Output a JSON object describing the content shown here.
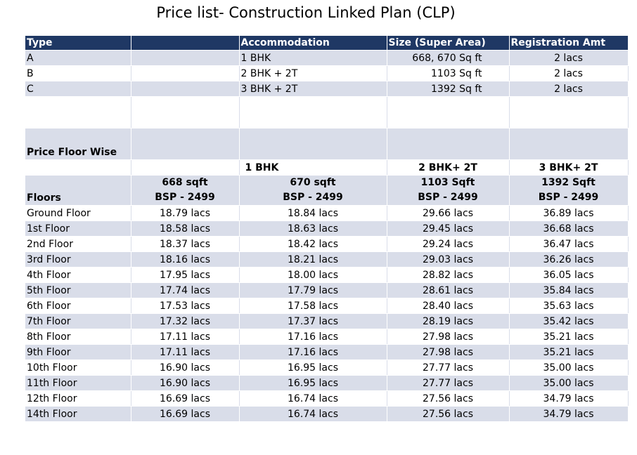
{
  "title": "Price list- Construction Linked Plan (CLP)",
  "header": {
    "type": "Type",
    "accommodation": "Accommodation",
    "size": "Size (Super Area)",
    "registration": "Registration Amt"
  },
  "types": [
    {
      "type": "A",
      "accommodation": "1 BHK",
      "size": "668, 670 Sq ft",
      "registration": "2 lacs"
    },
    {
      "type": "B",
      "accommodation": "2 BHK + 2T",
      "size": "1103 Sq ft",
      "registration": "2 lacs"
    },
    {
      "type": "C",
      "accommodation": "3 BHK + 2T",
      "size": "1392 Sq ft",
      "registration": "2 lacs"
    }
  ],
  "price_section": {
    "heading": "Price Floor Wise",
    "groups": [
      "1 BHK",
      "2 BHK+ 2T",
      "3 BHK+ 2T"
    ],
    "floors_label": "Floors",
    "columns": [
      {
        "size": "668 sqft",
        "bsp": "BSP - 2499"
      },
      {
        "size": "670 sqft",
        "bsp": "BSP - 2499"
      },
      {
        "size": "1103 Sqft",
        "bsp": "BSP - 2499"
      },
      {
        "size": "1392 Sqft",
        "bsp": "BSP - 2499"
      }
    ],
    "rows": [
      {
        "floor": "Ground Floor",
        "p1": "18.79 lacs",
        "p2": "18.84 lacs",
        "p3": "29.66 lacs",
        "p4": "36.89 lacs"
      },
      {
        "floor": "1st Floor",
        "p1": "18.58 lacs",
        "p2": "18.63 lacs",
        "p3": "29.45 lacs",
        "p4": "36.68 lacs"
      },
      {
        "floor": "2nd Floor",
        "p1": "18.37 lacs",
        "p2": "18.42 lacs",
        "p3": "29.24 lacs",
        "p4": "36.47 lacs"
      },
      {
        "floor": "3rd Floor",
        "p1": "18.16 lacs",
        "p2": "18.21 lacs",
        "p3": "29.03 lacs",
        "p4": "36.26 lacs"
      },
      {
        "floor": "4th Floor",
        "p1": "17.95 lacs",
        "p2": "18.00 lacs",
        "p3": "28.82 lacs",
        "p4": "36.05 lacs"
      },
      {
        "floor": "5th Floor",
        "p1": "17.74 lacs",
        "p2": "17.79 lacs",
        "p3": "28.61 lacs",
        "p4": "35.84 lacs"
      },
      {
        "floor": "6th Floor",
        "p1": "17.53 lacs",
        "p2": "17.58 lacs",
        "p3": "28.40 lacs",
        "p4": "35.63 lacs"
      },
      {
        "floor": "7th Floor",
        "p1": "17.32 lacs",
        "p2": "17.37 lacs",
        "p3": "28.19 lacs",
        "p4": "35.42 lacs"
      },
      {
        "floor": "8th Floor",
        "p1": "17.11 lacs",
        "p2": "17.16 lacs",
        "p3": "27.98 lacs",
        "p4": "35.21 lacs"
      },
      {
        "floor": "9th Floor",
        "p1": "17.11 lacs",
        "p2": "17.16 lacs",
        "p3": "27.98 lacs",
        "p4": "35.21 lacs"
      },
      {
        "floor": "10th Floor",
        "p1": "16.90 lacs",
        "p2": "16.95 lacs",
        "p3": "27.77 lacs",
        "p4": "35.00 lacs"
      },
      {
        "floor": "11th Floor",
        "p1": "16.90 lacs",
        "p2": "16.95 lacs",
        "p3": "27.77 lacs",
        "p4": "35.00 lacs"
      },
      {
        "floor": "12th Floor",
        "p1": "16.69 lacs",
        "p2": "16.74 lacs",
        "p3": "27.56 lacs",
        "p4": "34.79 lacs"
      },
      {
        "floor": "14th Floor",
        "p1": "16.69 lacs",
        "p2": "16.74 lacs",
        "p3": "27.56 lacs",
        "p4": "34.79 lacs"
      }
    ]
  }
}
